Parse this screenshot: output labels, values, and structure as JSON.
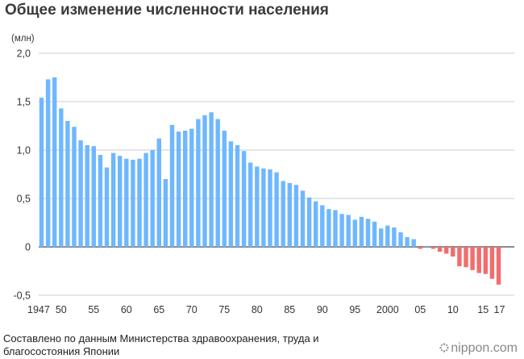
{
  "header": {
    "title": "Общее изменение численности населения"
  },
  "axis_unit": "(млн)",
  "source": "Составлено по данным Министерства здравоохранения, труда и благосостояния Японии",
  "brand": {
    "name": "nippon.com"
  },
  "colors": {
    "positive": "#6fb7ff",
    "negative": "#f26d6d",
    "grid": "#bbbbbb",
    "zero": "#444444"
  },
  "chart_data": {
    "type": "bar",
    "ylabel": "(млн)",
    "ylim": [
      -0.5,
      2.0
    ],
    "yticks": [
      {
        "value": 2.0,
        "label": "2,0"
      },
      {
        "value": 1.5,
        "label": "1,5"
      },
      {
        "value": 1.0,
        "label": "1,0"
      },
      {
        "value": 0.5,
        "label": "0,5"
      },
      {
        "value": 0,
        "label": "0"
      },
      {
        "value": -0.5,
        "label": "-0,5"
      }
    ],
    "xtick_labels": [
      {
        "year": 1947,
        "label": "1947"
      },
      {
        "year": 1950,
        "label": "50"
      },
      {
        "year": 1955,
        "label": "55"
      },
      {
        "year": 1960,
        "label": "60"
      },
      {
        "year": 1965,
        "label": "65"
      },
      {
        "year": 1970,
        "label": "70"
      },
      {
        "year": 1975,
        "label": "75"
      },
      {
        "year": 1980,
        "label": "80"
      },
      {
        "year": 1985,
        "label": "85"
      },
      {
        "year": 1990,
        "label": "90"
      },
      {
        "year": 1995,
        "label": "95"
      },
      {
        "year": 2000,
        "label": "2000"
      },
      {
        "year": 2005,
        "label": "05"
      },
      {
        "year": 2010,
        "label": "10"
      },
      {
        "year": 2015,
        "label": "15"
      },
      {
        "year": 2017,
        "label": "17"
      }
    ],
    "grid": true,
    "years": [
      1947,
      1948,
      1949,
      1950,
      1951,
      1952,
      1953,
      1954,
      1955,
      1956,
      1957,
      1958,
      1959,
      1960,
      1961,
      1962,
      1963,
      1964,
      1965,
      1966,
      1967,
      1968,
      1969,
      1970,
      1971,
      1972,
      1973,
      1974,
      1975,
      1976,
      1977,
      1978,
      1979,
      1980,
      1981,
      1982,
      1983,
      1984,
      1985,
      1986,
      1987,
      1988,
      1989,
      1990,
      1991,
      1992,
      1993,
      1994,
      1995,
      1996,
      1997,
      1998,
      1999,
      2000,
      2001,
      2002,
      2003,
      2004,
      2005,
      2006,
      2007,
      2008,
      2009,
      2010,
      2011,
      2012,
      2013,
      2014,
      2015,
      2016,
      2017
    ],
    "values": [
      1.54,
      1.73,
      1.75,
      1.43,
      1.3,
      1.24,
      1.1,
      1.05,
      1.04,
      0.95,
      0.82,
      0.97,
      0.94,
      0.91,
      0.9,
      0.91,
      0.97,
      1.0,
      1.12,
      0.7,
      1.26,
      1.19,
      1.2,
      1.22,
      1.32,
      1.36,
      1.39,
      1.32,
      1.2,
      1.09,
      1.05,
      0.99,
      0.87,
      0.83,
      0.81,
      0.8,
      0.77,
      0.68,
      0.66,
      0.64,
      0.58,
      0.51,
      0.47,
      0.43,
      0.39,
      0.38,
      0.34,
      0.33,
      0.28,
      0.31,
      0.29,
      0.26,
      0.19,
      0.22,
      0.2,
      0.15,
      0.1,
      0.08,
      -0.02,
      0.01,
      -0.02,
      -0.05,
      -0.07,
      -0.1,
      -0.2,
      -0.21,
      -0.24,
      -0.27,
      -0.28,
      -0.33,
      -0.39
    ]
  }
}
